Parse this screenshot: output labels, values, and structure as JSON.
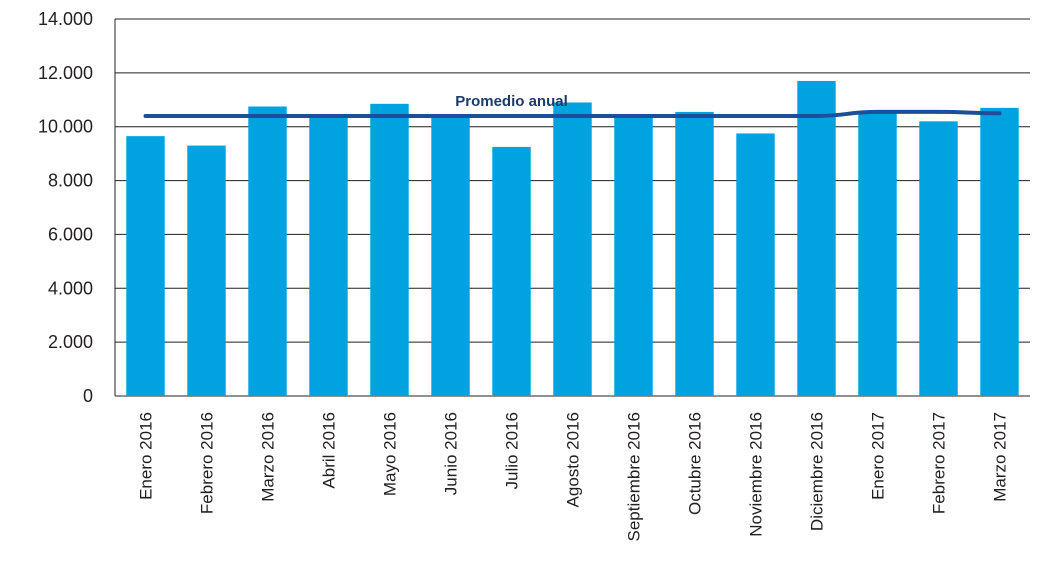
{
  "chart_data": {
    "type": "bar",
    "categories": [
      "Enero 2016",
      "Febrero 2016",
      "Marzo 2016",
      "Abril 2016",
      "Mayo 2016",
      "Junio 2016",
      "Julio 2016",
      "Agosto 2016",
      "Septiembre 2016",
      "Octubre 2016",
      "Noviembre 2016",
      "Diciembre 2016",
      "Enero 2017",
      "Febrero 2017",
      "Marzo 2017"
    ],
    "series": [
      {
        "type": "bar",
        "values": [
          9650,
          9300,
          10750,
          10450,
          10850,
          10400,
          9250,
          10900,
          10450,
          10550,
          9750,
          11700,
          10500,
          10200,
          10700
        ]
      },
      {
        "name": "Promedio anual",
        "type": "line",
        "values": [
          10400,
          10400,
          10400,
          10400,
          10400,
          10400,
          10400,
          10400,
          10400,
          10400,
          10400,
          10400,
          10550,
          10550,
          10500
        ]
      }
    ],
    "ylim": [
      0,
      14000
    ],
    "yticks": [
      0,
      2000,
      4000,
      6000,
      8000,
      10000,
      12000,
      14000
    ],
    "ytick_labels": [
      "0",
      "2.000",
      "4.000",
      "6.000",
      "8.000",
      "10.000",
      "12.000",
      "14.000"
    ],
    "grid": true,
    "annotation": "Promedio anual",
    "colors": {
      "bar": "#00a3e0",
      "line": "#1b4f9c",
      "grid": "#231f20"
    }
  }
}
